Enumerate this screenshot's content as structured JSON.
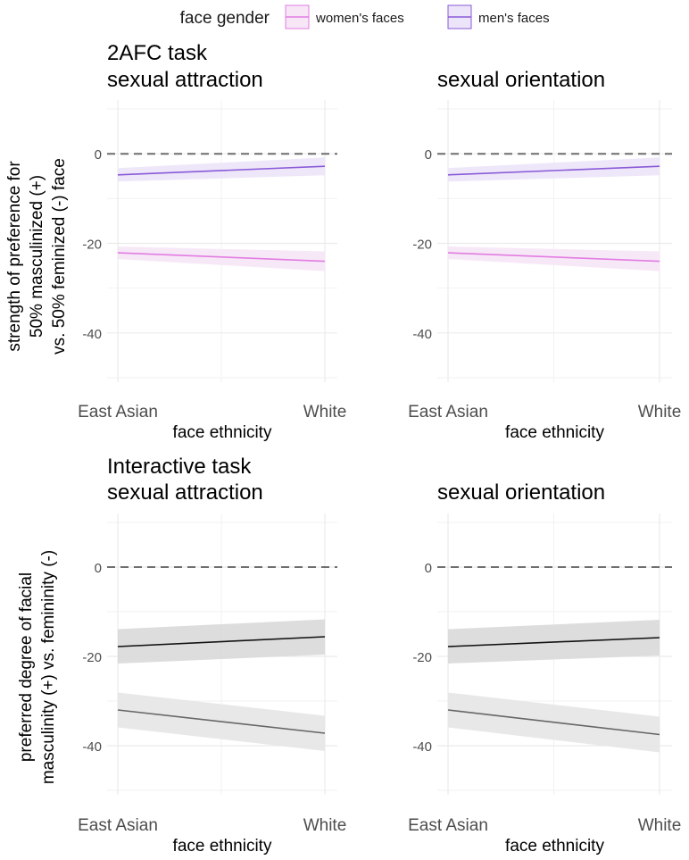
{
  "legend": {
    "title": "face gender",
    "items": [
      {
        "label": "women's faces",
        "fill": "#f6e6f6",
        "stroke": "#e27ce2"
      },
      {
        "label": "men's faces",
        "fill": "#ece4f8",
        "stroke": "#8a5ad8"
      }
    ]
  },
  "chart_data": [
    {
      "type": "line",
      "title": "2AFC task\nsexual attraction",
      "xlabel": "face ethnicity",
      "ylabel": "strength of preference for\n50% masculinized (+)\nvs. 50% feminized (-) face",
      "categories": [
        "East Asian",
        "White"
      ],
      "y_ticks": [
        0,
        -20,
        -40
      ],
      "ylim": [
        -51,
        12
      ],
      "reference_line": 0,
      "series": [
        {
          "name": "men's faces",
          "values": [
            -4.7,
            -2.8
          ],
          "lower": [
            -6.2,
            -4.8
          ],
          "upper": [
            -3.2,
            -0.8
          ],
          "color": "#8a5ad8",
          "band": "#ece4f8"
        },
        {
          "name": "women's faces",
          "values": [
            -22.1,
            -24.0
          ],
          "lower": [
            -23.5,
            -26.2
          ],
          "upper": [
            -20.7,
            -21.8
          ],
          "color": "#e27ce2",
          "band": "#f6e6f6"
        }
      ]
    },
    {
      "type": "line",
      "title": "sexual orientation",
      "xlabel": "face ethnicity",
      "ylabel": "",
      "categories": [
        "East Asian",
        "White"
      ],
      "y_ticks": [
        0,
        -20,
        -40
      ],
      "ylim": [
        -51,
        12
      ],
      "reference_line": 0,
      "series": [
        {
          "name": "men's faces",
          "values": [
            -4.7,
            -2.8
          ],
          "lower": [
            -6.2,
            -4.8
          ],
          "upper": [
            -3.2,
            -0.8
          ],
          "color": "#8a5ad8",
          "band": "#ece4f8"
        },
        {
          "name": "women's faces",
          "values": [
            -22.1,
            -24.0
          ],
          "lower": [
            -23.5,
            -26.2
          ],
          "upper": [
            -20.7,
            -21.8
          ],
          "color": "#e27ce2",
          "band": "#f6e6f6"
        }
      ]
    },
    {
      "type": "line",
      "title": "Interactive task\nsexual attraction",
      "xlabel": "face ethnicity",
      "ylabel": "preferred degree of facial\nmasculinity (+) vs. femininity (-)",
      "categories": [
        "East Asian",
        "White"
      ],
      "y_ticks": [
        0,
        -20,
        -40
      ],
      "ylim": [
        -51,
        12
      ],
      "reference_line": 0,
      "series": [
        {
          "name": "men's faces",
          "values": [
            -17.8,
            -15.6
          ],
          "lower": [
            -21.6,
            -19.6
          ],
          "upper": [
            -13.9,
            -11.7
          ],
          "color": "#111111",
          "band": "#d9d9d9"
        },
        {
          "name": "women's faces",
          "values": [
            -32.0,
            -37.2
          ],
          "lower": [
            -35.9,
            -41.2
          ],
          "upper": [
            -28.1,
            -33.3
          ],
          "color": "#666666",
          "band": "#e5e5e5"
        }
      ]
    },
    {
      "type": "line",
      "title": "sexual orientation",
      "xlabel": "face ethnicity",
      "ylabel": "",
      "categories": [
        "East Asian",
        "White"
      ],
      "y_ticks": [
        0,
        -20,
        -40
      ],
      "ylim": [
        -51,
        12
      ],
      "reference_line": 0,
      "series": [
        {
          "name": "men's faces",
          "values": [
            -17.8,
            -15.8
          ],
          "lower": [
            -21.6,
            -19.8
          ],
          "upper": [
            -13.9,
            -11.8
          ],
          "color": "#111111",
          "band": "#d9d9d9"
        },
        {
          "name": "women's faces",
          "values": [
            -32.0,
            -37.5
          ],
          "lower": [
            -35.9,
            -41.5
          ],
          "upper": [
            -28.1,
            -33.5
          ],
          "color": "#666666",
          "band": "#e5e5e5"
        }
      ]
    }
  ]
}
